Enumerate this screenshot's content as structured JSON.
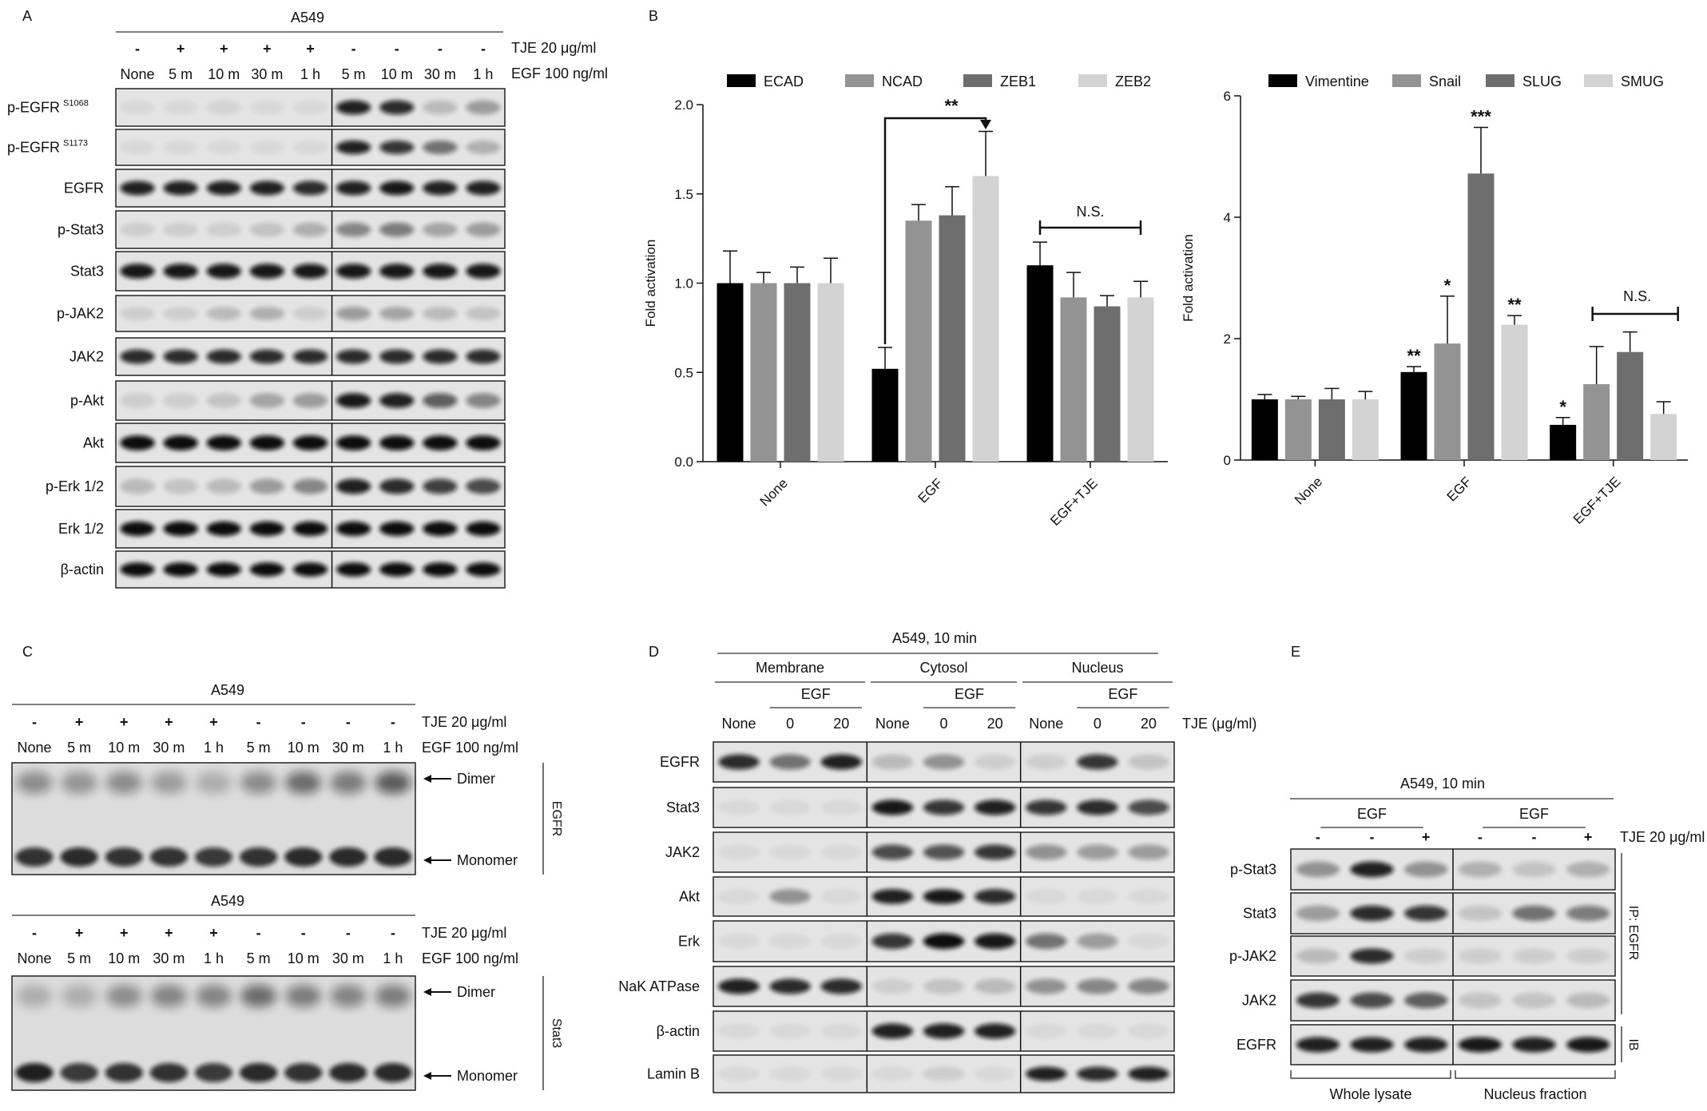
{
  "panelA": {
    "letter": "A",
    "cell": "A549",
    "tje_row": [
      "-",
      "+",
      "+",
      "+",
      "+",
      "-",
      "-",
      "-",
      "-"
    ],
    "time_row": [
      "None",
      "5 m",
      "10 m",
      "30 m",
      "1 h",
      "5 m",
      "10 m",
      "30 m",
      "1 h"
    ],
    "tje_label": "TJE 20 μg/ml",
    "egf_label": "EGF 100 ng/ml",
    "blots": [
      {
        "label": "p-EGFR",
        "sup": "S1068",
        "bands": [
          0,
          0,
          0.02,
          0,
          0,
          0.9,
          0.85,
          0.15,
          0.3
        ]
      },
      {
        "label": "p-EGFR",
        "sup": "S1173",
        "bands": [
          0,
          0,
          0,
          0,
          0,
          0.9,
          0.8,
          0.5,
          0.2
        ]
      },
      {
        "label": "EGFR",
        "sup": "",
        "bands": [
          0.9,
          0.9,
          0.9,
          0.9,
          0.85,
          0.9,
          0.95,
          0.9,
          0.9
        ]
      },
      {
        "label": "p-Stat3",
        "sup": "",
        "bands": [
          0.05,
          0.05,
          0.05,
          0.1,
          0.2,
          0.4,
          0.45,
          0.25,
          0.3
        ]
      },
      {
        "label": "Stat3",
        "sup": "",
        "bands": [
          0.95,
          0.95,
          0.95,
          0.95,
          0.95,
          0.95,
          0.95,
          0.95,
          0.95
        ]
      },
      {
        "label": "p-JAK2",
        "sup": "",
        "bands": [
          0.05,
          0.05,
          0.15,
          0.2,
          0.05,
          0.3,
          0.25,
          0.15,
          0.1
        ]
      },
      {
        "label": "JAK2",
        "sup": "",
        "bands": [
          0.85,
          0.85,
          0.85,
          0.85,
          0.85,
          0.85,
          0.85,
          0.85,
          0.85
        ]
      },
      {
        "label": "p-Akt",
        "sup": "",
        "bands": [
          0.05,
          0.05,
          0.1,
          0.25,
          0.3,
          0.95,
          0.9,
          0.6,
          0.4
        ]
      },
      {
        "label": "Akt",
        "sup": "",
        "bands": [
          1,
          1,
          1,
          1,
          1,
          1,
          1,
          1,
          1
        ]
      },
      {
        "label": "p-Erk 1/2",
        "sup": "",
        "bands": [
          0.15,
          0.1,
          0.15,
          0.3,
          0.4,
          0.9,
          0.85,
          0.75,
          0.7
        ]
      },
      {
        "label": "Erk 1/2",
        "sup": "",
        "bands": [
          1,
          1,
          1,
          1,
          1,
          1,
          1,
          1,
          1
        ]
      },
      {
        "label": "β-actin",
        "sup": "",
        "bands": [
          1,
          1,
          1,
          1,
          1,
          1,
          1,
          1,
          1
        ]
      }
    ]
  },
  "panelB": {
    "letter": "B",
    "chart_data": [
      {
        "type": "bar",
        "categories": [
          "None",
          "EGF",
          "EGF+TJE"
        ],
        "series": [
          {
            "name": "ECAD",
            "values": [
              1.0,
              0.52,
              1.1
            ],
            "errors": [
              0.18,
              0.12,
              0.13
            ],
            "color": "#000000"
          },
          {
            "name": "NCAD",
            "values": [
              1.0,
              1.35,
              0.92
            ],
            "errors": [
              0.06,
              0.09,
              0.14
            ],
            "color": "#939393"
          },
          {
            "name": "ZEB1",
            "values": [
              1.0,
              1.38,
              0.87
            ],
            "errors": [
              0.09,
              0.16,
              0.06
            ],
            "color": "#6e6e6e"
          },
          {
            "name": "ZEB2",
            "values": [
              1.0,
              1.6,
              0.92
            ],
            "errors": [
              0.14,
              0.25,
              0.09
            ],
            "color": "#d3d3d3"
          }
        ],
        "ylabel": "Fold activation",
        "ylim": [
          0,
          2.0
        ],
        "yticks": [
          "0.0",
          "0.5",
          "1.0",
          "1.5",
          "2.0"
        ],
        "annotations": {
          "sig_egf": "**",
          "ns_egftje": "N.S."
        }
      },
      {
        "type": "bar",
        "categories": [
          "None",
          "EGF",
          "EGF+TJE"
        ],
        "series": [
          {
            "name": "Vimentine",
            "values": [
              1.0,
              1.45,
              0.58
            ],
            "errors": [
              0.08,
              0.09,
              0.12
            ],
            "color": "#000000"
          },
          {
            "name": "Snail",
            "values": [
              1.0,
              1.92,
              1.25
            ],
            "errors": [
              0.05,
              0.78,
              0.62
            ],
            "color": "#939393"
          },
          {
            "name": "SLUG",
            "values": [
              1.0,
              4.72,
              1.78
            ],
            "errors": [
              0.18,
              0.76,
              0.33
            ],
            "color": "#6e6e6e"
          },
          {
            "name": "SMUG",
            "values": [
              1.0,
              2.23,
              0.76
            ],
            "errors": [
              0.13,
              0.15,
              0.2
            ],
            "color": "#d3d3d3"
          }
        ],
        "ylabel": "Fold activation",
        "ylim": [
          0,
          6
        ],
        "yticks": [
          "0",
          "2",
          "4",
          "6"
        ],
        "annotations": {
          "egf_vimentine": "**",
          "egf_snail": "*",
          "egf_slug": "***",
          "egf_smug": "**",
          "egftje_vimentine": "*",
          "ns_egftje": "N.S."
        }
      }
    ]
  },
  "panelC": {
    "letter": "C",
    "tje_row": [
      "-",
      "+",
      "+",
      "+",
      "+",
      "-",
      "-",
      "-",
      "-"
    ],
    "time_row": [
      "None",
      "5 m",
      "10 m",
      "30 m",
      "1 h",
      "5 m",
      "10 m",
      "30 m",
      "1 h"
    ],
    "tje_label": "TJE 20 μg/ml",
    "egf_label": "EGF 100 ng/ml",
    "dimer": "Dimer",
    "monomer": "Monomer",
    "blots": [
      {
        "cell": "A549",
        "side": "EGFR",
        "dimer": [
          0.35,
          0.3,
          0.35,
          0.25,
          0.15,
          0.35,
          0.55,
          0.45,
          0.65
        ],
        "mono": [
          0.85,
          0.9,
          0.85,
          0.85,
          0.8,
          0.85,
          0.9,
          0.9,
          0.9
        ]
      },
      {
        "cell": "A549",
        "side": "Stat3",
        "dimer": [
          0.15,
          0.15,
          0.35,
          0.4,
          0.4,
          0.55,
          0.45,
          0.4,
          0.45
        ],
        "mono": [
          0.95,
          0.8,
          0.85,
          0.85,
          0.8,
          0.9,
          0.85,
          0.9,
          0.9
        ]
      }
    ]
  },
  "panelD": {
    "letter": "D",
    "title": "A549, 10 min",
    "fractions": [
      "Membrane",
      "Cytosol",
      "Nucleus"
    ],
    "egf": "EGF",
    "lanes": [
      "None",
      "0",
      "20",
      "None",
      "0",
      "20",
      "None",
      "0",
      "20"
    ],
    "tje_label": "TJE (μg/ml)",
    "blots": [
      {
        "label": "EGFR",
        "bands": [
          0.85,
          0.5,
          0.9,
          0.15,
          0.35,
          0.05,
          0.05,
          0.8,
          0.1
        ]
      },
      {
        "label": "Stat3",
        "bands": [
          0,
          0,
          0,
          0.95,
          0.8,
          0.9,
          0.8,
          0.85,
          0.7
        ]
      },
      {
        "label": "JAK2",
        "bands": [
          0,
          0,
          0,
          0.7,
          0.65,
          0.8,
          0.35,
          0.3,
          0.3
        ]
      },
      {
        "label": "Akt",
        "bands": [
          0,
          0.35,
          0,
          0.9,
          0.95,
          0.85,
          0,
          0,
          0
        ]
      },
      {
        "label": "Erk",
        "bands": [
          0,
          0,
          0,
          0.8,
          1.0,
          0.95,
          0.5,
          0.3,
          0
        ]
      },
      {
        "label": "NaK ATPase",
        "bands": [
          0.9,
          0.85,
          0.85,
          0.05,
          0.1,
          0.15,
          0.35,
          0.4,
          0.4
        ]
      },
      {
        "label": "β-actin",
        "bands": [
          0,
          0,
          0,
          0.9,
          0.9,
          0.9,
          0,
          0,
          0
        ]
      },
      {
        "label": "Lamin B",
        "bands": [
          0,
          0,
          0,
          0,
          0.05,
          0,
          0.9,
          0.85,
          0.9
        ]
      }
    ]
  },
  "panelE": {
    "letter": "E",
    "title": "A549, 10 min",
    "egf": "EGF",
    "tje_row": [
      "-",
      "-",
      "+",
      "-",
      "-",
      "+"
    ],
    "tje_label": "TJE 20 μg/ml",
    "ip_label": "IP: EGFR",
    "ib_label": "IB",
    "groups": [
      "Whole lysate",
      "Nucleus fraction"
    ],
    "blots": [
      {
        "label": "p-Stat3",
        "bands": [
          0.35,
          0.9,
          0.35,
          0.2,
          0.1,
          0.2
        ]
      },
      {
        "label": "Stat3",
        "bands": [
          0.3,
          0.85,
          0.8,
          0.1,
          0.5,
          0.45
        ]
      },
      {
        "label": "p-JAK2",
        "bands": [
          0.15,
          0.85,
          0.05,
          0.05,
          0.05,
          0.05
        ]
      },
      {
        "label": "JAK2",
        "bands": [
          0.8,
          0.7,
          0.6,
          0.1,
          0.1,
          0.15
        ]
      },
      {
        "label": "EGFR",
        "bands": [
          0.9,
          0.9,
          0.9,
          0.95,
          0.9,
          0.95
        ]
      }
    ]
  }
}
